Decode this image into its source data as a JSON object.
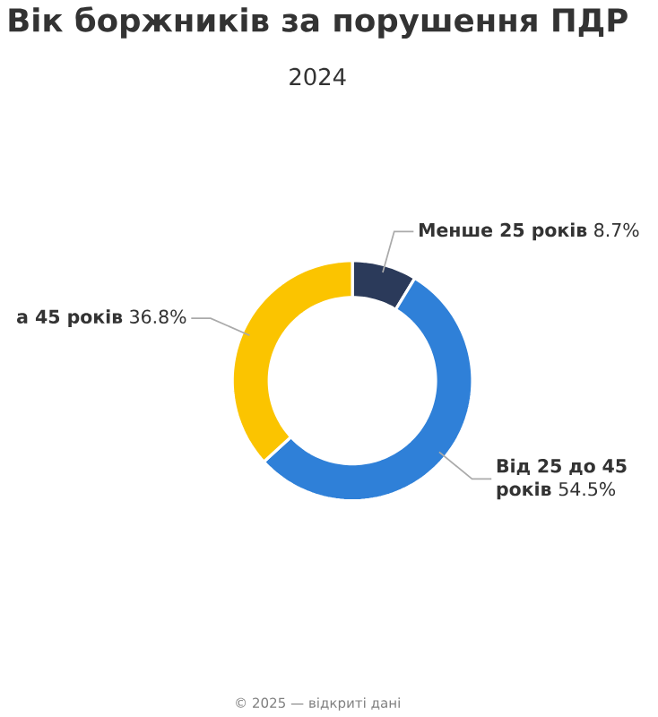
{
  "chart_data": {
    "type": "donut",
    "title": "Вік боржників за порушення ПДР",
    "subtitle": "2024",
    "categories": [
      "Менше 25 років",
      "Від 25 до 45 років",
      "а 45 років"
    ],
    "values": [
      8.7,
      54.5,
      36.8
    ],
    "value_labels": [
      "8.7%",
      "54.5%",
      "36.8%"
    ],
    "colors": [
      "#2b3a5a",
      "#2f80d8",
      "#fbc400"
    ],
    "annotations": [
      "© 2025 — відкриті дані"
    ]
  }
}
